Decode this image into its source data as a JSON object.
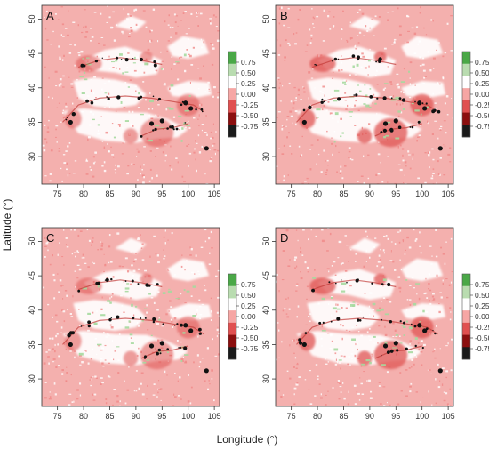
{
  "figure": {
    "x_label": "Longitude (°)",
    "y_label": "Latitude (°)"
  },
  "chart_data": {
    "type": "heatmap",
    "x_range": [
      72,
      106
    ],
    "y_range": [
      26,
      52
    ],
    "x_ticks": [
      "75",
      "80",
      "85",
      "90",
      "95",
      "100",
      "105"
    ],
    "y_ticks": [
      "30",
      "35",
      "40",
      "45",
      "50"
    ],
    "colorbar": {
      "range": [
        -1.0,
        1.0
      ],
      "tick_values": [
        0.75,
        0.5,
        0.25,
        0.0,
        -0.25,
        -0.5,
        -0.75
      ],
      "tick_labels": [
        "0.75",
        "0.50",
        "0.25",
        "0.00",
        "-0.25",
        "-0.50",
        "-0.75"
      ],
      "colors": [
        "#4aa847",
        "#b9dcb0",
        "#ffffff",
        "#f6a6a4",
        "#e05050",
        "#8b0f0f",
        "#1a1a1a"
      ]
    },
    "panels": [
      {
        "label": "A"
      },
      {
        "label": "B"
      },
      {
        "label": "C"
      },
      {
        "label": "D"
      }
    ]
  }
}
